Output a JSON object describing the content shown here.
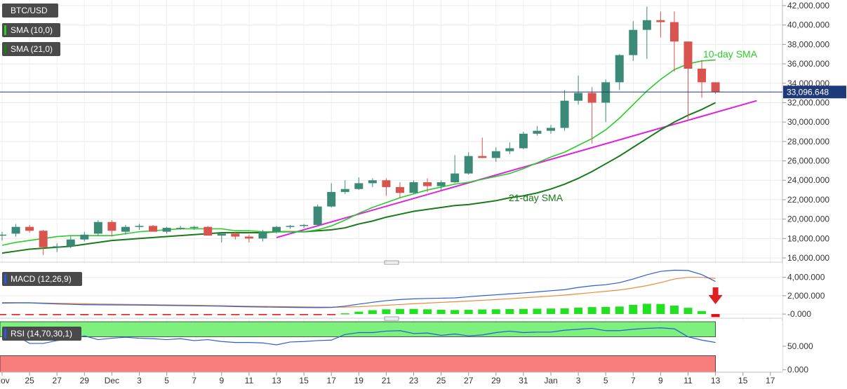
{
  "symbol": "BTC/USD",
  "indicators": {
    "sma10": "SMA (10,0)",
    "sma21": "SMA (21,0)",
    "macd": "MACD (12,26,9)",
    "rsi": "RSI (14,70,30,1)"
  },
  "annotations": {
    "sma10": "10-day SMA",
    "sma21": "21-day SMA"
  },
  "last_price": "33,096.648",
  "colors": {
    "bull": "#3b8a78",
    "bear": "#d9534f",
    "sma10": "#2bcc2b",
    "sma21": "#1a7a1a",
    "trendline": "#e020e0",
    "macd_line": "#2b5bd7",
    "signal_line": "#f08a3a",
    "hist_pos": "#22e022",
    "hist_neg": "#e01010",
    "rsi": "#2b5bd7",
    "overbought": "#7df07d",
    "oversold": "#f87d7d",
    "price_line": "#1e3a78",
    "tag_bg": "#4a4a4a",
    "arrow": "#e02020"
  },
  "chart_data": {
    "type": "candlestick",
    "x_tick_labels": [
      "Nov",
      "25",
      "27",
      "29",
      "Dec",
      "3",
      "5",
      "7",
      "9",
      "11",
      "13",
      "15",
      "17",
      "19",
      "21",
      "23",
      "25",
      "27",
      "29",
      "31",
      "Jan",
      "3",
      "5",
      "7",
      "9",
      "11",
      "13",
      "15",
      "17"
    ],
    "price_axis": {
      "ticks": [
        16000,
        18000,
        20000,
        22000,
        24000,
        26000,
        28000,
        30000,
        32000,
        34000,
        36000,
        38000,
        40000,
        42000
      ],
      "tick_labels": [
        "16,000.000",
        "18,000.000",
        "20,000.000",
        "22,000.000",
        "24,000.000",
        "26,000.000",
        "28,000.000",
        "30,000.000",
        "32,000.000",
        "34,000.000",
        "36,000.000",
        "38,000.000",
        "40,000.000",
        "42,000.000"
      ],
      "ylim": [
        16000,
        42000
      ],
      "last_price": 33096.648
    },
    "candles": [
      {
        "date": "Nov 24",
        "o": 18400,
        "h": 18700,
        "l": 17800,
        "c": 18400
      },
      {
        "date": "Nov 25",
        "o": 18500,
        "h": 19500,
        "l": 18200,
        "c": 19200
      },
      {
        "date": "Nov 26",
        "o": 19200,
        "h": 19400,
        "l": 18600,
        "c": 18800
      },
      {
        "date": "Nov 27",
        "o": 18800,
        "h": 18900,
        "l": 16300,
        "c": 17100
      },
      {
        "date": "Nov 28",
        "o": 17100,
        "h": 17500,
        "l": 16600,
        "c": 17200
      },
      {
        "date": "Nov 29",
        "o": 17200,
        "h": 18300,
        "l": 17000,
        "c": 17900
      },
      {
        "date": "Nov 30",
        "o": 17900,
        "h": 18700,
        "l": 17700,
        "c": 18400
      },
      {
        "date": "Dec 1",
        "o": 18500,
        "h": 19900,
        "l": 18300,
        "c": 19700
      },
      {
        "date": "Dec 2",
        "o": 19700,
        "h": 19900,
        "l": 18200,
        "c": 18800
      },
      {
        "date": "Dec 3",
        "o": 18700,
        "h": 19400,
        "l": 18400,
        "c": 19200
      },
      {
        "date": "Dec 4",
        "o": 19200,
        "h": 19500,
        "l": 18900,
        "c": 19300
      },
      {
        "date": "Dec 5",
        "o": 19300,
        "h": 19400,
        "l": 18700,
        "c": 18700
      },
      {
        "date": "Dec 6",
        "o": 18700,
        "h": 19200,
        "l": 18500,
        "c": 19100
      },
      {
        "date": "Dec 7",
        "o": 19100,
        "h": 19300,
        "l": 18900,
        "c": 19100
      },
      {
        "date": "Dec 8",
        "o": 19100,
        "h": 19300,
        "l": 18900,
        "c": 19200
      },
      {
        "date": "Dec 9",
        "o": 19200,
        "h": 19300,
        "l": 18300,
        "c": 18300
      },
      {
        "date": "Dec 10",
        "o": 18300,
        "h": 18600,
        "l": 17600,
        "c": 18500
      },
      {
        "date": "Dec 11",
        "o": 18500,
        "h": 18700,
        "l": 17900,
        "c": 18200
      },
      {
        "date": "Dec 12",
        "o": 18200,
        "h": 18400,
        "l": 17600,
        "c": 18000
      },
      {
        "date": "Dec 13",
        "o": 18000,
        "h": 18900,
        "l": 17700,
        "c": 18700
      },
      {
        "date": "Dec 14",
        "o": 18700,
        "h": 19300,
        "l": 18500,
        "c": 19200
      },
      {
        "date": "Dec 15",
        "o": 19200,
        "h": 19400,
        "l": 19000,
        "c": 19300
      },
      {
        "date": "Dec 16",
        "o": 19300,
        "h": 19500,
        "l": 19100,
        "c": 19400
      },
      {
        "date": "Dec 17",
        "o": 19400,
        "h": 21500,
        "l": 19300,
        "c": 21300
      },
      {
        "date": "Dec 18",
        "o": 21300,
        "h": 23700,
        "l": 21200,
        "c": 22800
      },
      {
        "date": "Dec 19",
        "o": 22800,
        "h": 24000,
        "l": 22600,
        "c": 23100
      },
      {
        "date": "Dec 20",
        "o": 23100,
        "h": 24300,
        "l": 23000,
        "c": 23700
      },
      {
        "date": "Dec 21",
        "o": 23700,
        "h": 24200,
        "l": 23300,
        "c": 24000
      },
      {
        "date": "Dec 22",
        "o": 24000,
        "h": 24200,
        "l": 22400,
        "c": 23300
      },
      {
        "date": "Dec 23",
        "o": 23300,
        "h": 23800,
        "l": 22200,
        "c": 22700
      },
      {
        "date": "Dec 24",
        "o": 22700,
        "h": 24000,
        "l": 22600,
        "c": 23800
      },
      {
        "date": "Dec 25",
        "o": 23800,
        "h": 24200,
        "l": 22800,
        "c": 23400
      },
      {
        "date": "Dec 26",
        "o": 23400,
        "h": 24000,
        "l": 23000,
        "c": 23800
      },
      {
        "date": "Dec 27",
        "o": 23800,
        "h": 26600,
        "l": 23700,
        "c": 24700
      },
      {
        "date": "Dec 28",
        "o": 24700,
        "h": 26900,
        "l": 24600,
        "c": 26500
      },
      {
        "date": "Dec 29",
        "o": 26500,
        "h": 28400,
        "l": 26300,
        "c": 26300
      },
      {
        "date": "Dec 30",
        "o": 26300,
        "h": 27400,
        "l": 25900,
        "c": 27000
      },
      {
        "date": "Dec 31",
        "o": 27000,
        "h": 27900,
        "l": 26700,
        "c": 27300
      },
      {
        "date": "Jan 1",
        "o": 27300,
        "h": 29000,
        "l": 27200,
        "c": 28800
      },
      {
        "date": "Jan 2",
        "o": 28800,
        "h": 29600,
        "l": 28600,
        "c": 29100
      },
      {
        "date": "Jan 3",
        "o": 29100,
        "h": 29700,
        "l": 28800,
        "c": 29400
      },
      {
        "date": "Jan 4",
        "o": 29400,
        "h": 33300,
        "l": 29100,
        "c": 32200
      },
      {
        "date": "Jan 5",
        "o": 32200,
        "h": 34800,
        "l": 31800,
        "c": 33000
      },
      {
        "date": "Jan 6",
        "o": 33000,
        "h": 33600,
        "l": 27800,
        "c": 32000
      },
      {
        "date": "Jan 7",
        "o": 32000,
        "h": 34400,
        "l": 30000,
        "c": 34100
      },
      {
        "date": "Jan 8",
        "o": 34100,
        "h": 37000,
        "l": 33300,
        "c": 36900
      },
      {
        "date": "Jan 9",
        "o": 36900,
        "h": 40400,
        "l": 36300,
        "c": 39500
      },
      {
        "date": "Jan 10",
        "o": 39500,
        "h": 41900,
        "l": 36500,
        "c": 40500
      },
      {
        "date": "Jan 11",
        "o": 40500,
        "h": 41400,
        "l": 38700,
        "c": 40300
      },
      {
        "date": "Jan 12",
        "o": 40300,
        "h": 41400,
        "l": 35200,
        "c": 38300
      },
      {
        "date": "Jan 13",
        "o": 38300,
        "h": 38300,
        "l": 30300,
        "c": 35500
      },
      {
        "date": "Jan 14",
        "o": 35500,
        "h": 36400,
        "l": 32500,
        "c": 34100
      },
      {
        "date": "Jan 15",
        "o": 34100,
        "h": 34100,
        "l": 32900,
        "c": 33100
      }
    ],
    "sma10": [
      17300,
      17600,
      17800,
      18000,
      18200,
      18300,
      18300,
      18300,
      18300,
      18500,
      18700,
      18800,
      18900,
      19000,
      19000,
      19000,
      19000,
      18800,
      18800,
      18700,
      18700,
      18700,
      18700,
      18900,
      19300,
      19900,
      20600,
      21200,
      21700,
      22200,
      22600,
      23000,
      23300,
      23600,
      23800,
      24100,
      24400,
      24700,
      25200,
      25800,
      26400,
      26900,
      27600,
      28300,
      29200,
      30400,
      31800,
      33200,
      34400,
      35400,
      36000,
      36300,
      36400
    ],
    "sma21": [
      16500,
      16700,
      16900,
      17000,
      17100,
      17200,
      17400,
      17600,
      17800,
      17900,
      18000,
      18100,
      18200,
      18300,
      18400,
      18500,
      18600,
      18600,
      18600,
      18600,
      18700,
      18700,
      18700,
      18800,
      18900,
      19100,
      19500,
      19800,
      20200,
      20500,
      20800,
      21000,
      21200,
      21400,
      21500,
      21700,
      21900,
      22200,
      22400,
      22700,
      23100,
      23600,
      24200,
      24900,
      25700,
      26500,
      27400,
      28300,
      29200,
      30000,
      30700,
      31300,
      32000
    ],
    "trendline": {
      "from": {
        "date": "Dec 14",
        "price": 18100
      },
      "to": {
        "date": "Jan 18",
        "price": 32200
      }
    },
    "macd_axis": {
      "ticks": [
        0,
        2000,
        4000
      ],
      "tick_labels": [
        "-0.000",
        "2,000.000",
        "4,000.000"
      ],
      "ylim": [
        -300,
        5200
      ]
    },
    "macd": [
      1200,
      1220,
      1230,
      1160,
      1100,
      1060,
      1020,
      1010,
      1000,
      990,
      980,
      960,
      940,
      920,
      900,
      880,
      850,
      820,
      790,
      770,
      750,
      730,
      710,
      700,
      720,
      860,
      1080,
      1280,
      1460,
      1580,
      1660,
      1700,
      1730,
      1760,
      1880,
      2000,
      2100,
      2200,
      2300,
      2420,
      2540,
      2660,
      2900,
      3080,
      3200,
      3420,
      3820,
      4280,
      4650,
      4780,
      4750,
      4300,
      3550
    ],
    "signal": [
      1250,
      1250,
      1230,
      1200,
      1180,
      1150,
      1120,
      1100,
      1080,
      1060,
      1040,
      1020,
      1000,
      980,
      960,
      930,
      910,
      880,
      860,
      840,
      820,
      800,
      780,
      760,
      750,
      760,
      800,
      880,
      960,
      1040,
      1120,
      1200,
      1270,
      1340,
      1420,
      1500,
      1580,
      1670,
      1770,
      1860,
      1960,
      2070,
      2200,
      2340,
      2480,
      2620,
      2840,
      3100,
      3430,
      3820,
      4000,
      4000,
      3880
    ],
    "histogram": [
      -80,
      -60,
      -40,
      -60,
      -80,
      -100,
      -120,
      -110,
      -100,
      -90,
      -80,
      -80,
      -80,
      -80,
      -80,
      -70,
      -70,
      -70,
      -70,
      -70,
      -70,
      -70,
      -80,
      -70,
      -40,
      80,
      260,
      420,
      520,
      560,
      560,
      520,
      470,
      440,
      460,
      500,
      520,
      540,
      560,
      580,
      600,
      620,
      700,
      760,
      780,
      820,
      1000,
      1120,
      1100,
      920,
      680,
      330,
      -330
    ],
    "rsi_axis": {
      "ticks": [
        0,
        50
      ],
      "tick_labels": [
        "0.000",
        "50.000"
      ],
      "ylim": [
        -5,
        102
      ]
    },
    "rsi": [
      76,
      73,
      56,
      56,
      62,
      65,
      72,
      64,
      67,
      69,
      67,
      66,
      64,
      66,
      62,
      64,
      60,
      58,
      58,
      57,
      53,
      59,
      60,
      62,
      63,
      75,
      79,
      79,
      82,
      83,
      77,
      78,
      73,
      76,
      72,
      74,
      79,
      82,
      79,
      80,
      80,
      84,
      86,
      88,
      83,
      83,
      86,
      88,
      89,
      87,
      70,
      63,
      58
    ],
    "rsi_zones": {
      "overbought": 70,
      "oversold": 30
    }
  }
}
